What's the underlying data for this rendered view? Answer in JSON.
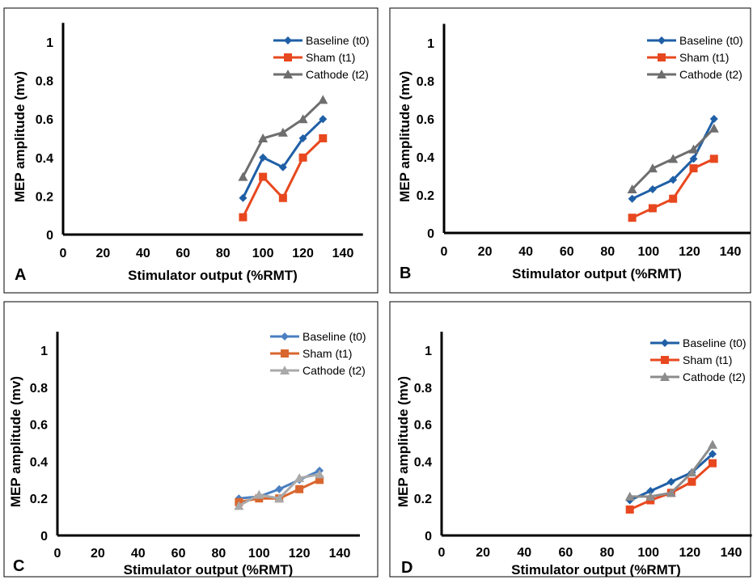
{
  "chart_data": [
    {
      "panel_label": "A",
      "type": "line",
      "xlabel": "Stimulator output (%RMT)",
      "ylabel": "MEP amplitude (mv)",
      "xlim": [
        0,
        150
      ],
      "ylim": [
        0,
        1.1
      ],
      "x_ticks": [
        "0",
        "20",
        "40",
        "60",
        "80",
        "100",
        "120",
        "140"
      ],
      "y_ticks": [
        "0",
        "0.2",
        "0.4",
        "0.6",
        "0.8",
        "1"
      ],
      "legend_position": "top-right",
      "series": [
        {
          "name": "Baseline (t0)",
          "marker": "diamond",
          "color": "#1f5fa6",
          "x": [
            90,
            100,
            110,
            120,
            130
          ],
          "values": [
            0.19,
            0.4,
            0.35,
            0.5,
            0.6
          ]
        },
        {
          "name": "Sham (t1)",
          "marker": "square",
          "color": "#e8481f",
          "x": [
            90,
            100,
            110,
            120,
            130
          ],
          "values": [
            0.09,
            0.3,
            0.19,
            0.4,
            0.5
          ]
        },
        {
          "name": "Cathode (t2)",
          "marker": "triangle",
          "color": "#6e6e6e",
          "x": [
            90,
            100,
            110,
            120,
            130
          ],
          "values": [
            0.3,
            0.5,
            0.53,
            0.6,
            0.7
          ]
        }
      ]
    },
    {
      "panel_label": "B",
      "type": "line",
      "xlabel": "Stimulator output (%RMT)",
      "ylabel": "MEP amplitude (mv)",
      "xlim": [
        0,
        150
      ],
      "ylim": [
        0,
        1.1
      ],
      "x_ticks": [
        "0",
        "20",
        "40",
        "60",
        "80",
        "100",
        "120",
        "140"
      ],
      "y_ticks": [
        "0",
        "0.2",
        "0.4",
        "0.6",
        "0.8",
        "1"
      ],
      "legend_position": "top-right",
      "series": [
        {
          "name": "Baseline (t0)",
          "marker": "diamond",
          "color": "#1f5fa6",
          "x": [
            92,
            102,
            112,
            122,
            132
          ],
          "values": [
            0.18,
            0.23,
            0.28,
            0.39,
            0.6
          ]
        },
        {
          "name": "Sham (t1)",
          "marker": "square",
          "color": "#e8481f",
          "x": [
            92,
            102,
            112,
            122,
            132
          ],
          "values": [
            0.08,
            0.13,
            0.18,
            0.34,
            0.39
          ]
        },
        {
          "name": "Cathode (t2)",
          "marker": "triangle",
          "color": "#6e6e6e",
          "x": [
            92,
            102,
            112,
            122,
            132
          ],
          "values": [
            0.23,
            0.34,
            0.39,
            0.44,
            0.55
          ]
        }
      ]
    },
    {
      "panel_label": "C",
      "type": "line",
      "xlabel": "Stimulator output (%RMT)",
      "ylabel": "MEP amplitude (mv)",
      "xlim": [
        0,
        150
      ],
      "ylim": [
        0,
        1.1
      ],
      "x_ticks": [
        "0",
        "20",
        "40",
        "60",
        "80",
        "100",
        "120",
        "140"
      ],
      "y_ticks": [
        "0",
        "0.2",
        "0.4",
        "0.6",
        "0.8",
        "1"
      ],
      "legend_position": "top-right",
      "series": [
        {
          "name": "Baseline (t0)",
          "marker": "diamond",
          "color": "#4a7fc1",
          "x": [
            90,
            100,
            110,
            120,
            130
          ],
          "values": [
            0.2,
            0.21,
            0.25,
            0.3,
            0.35
          ]
        },
        {
          "name": "Sham (t1)",
          "marker": "square",
          "color": "#d9662e",
          "x": [
            90,
            100,
            110,
            120,
            130
          ],
          "values": [
            0.18,
            0.2,
            0.2,
            0.25,
            0.3
          ]
        },
        {
          "name": "Cathode (t2)",
          "marker": "triangle",
          "color": "#a9a9a9",
          "x": [
            90,
            100,
            110,
            120,
            130
          ],
          "values": [
            0.16,
            0.22,
            0.2,
            0.31,
            0.33
          ]
        }
      ]
    },
    {
      "panel_label": "D",
      "type": "line",
      "xlabel": "Stimulator output (%RMT)",
      "ylabel": "MEP amplitude (mv)",
      "xlim": [
        0,
        150
      ],
      "ylim": [
        0,
        1.1
      ],
      "x_ticks": [
        "0",
        "20",
        "40",
        "60",
        "80",
        "100",
        "120",
        "140"
      ],
      "y_ticks": [
        "0",
        "0.2",
        "0.4",
        "0.6",
        "0.8",
        "1"
      ],
      "legend_position": "top-right",
      "series": [
        {
          "name": "Baseline (t0)",
          "marker": "diamond",
          "color": "#1f5fa6",
          "x": [
            91,
            101,
            111,
            121,
            131
          ],
          "values": [
            0.19,
            0.24,
            0.29,
            0.34,
            0.44
          ]
        },
        {
          "name": "Sham (t1)",
          "marker": "square",
          "color": "#e8481f",
          "x": [
            91,
            101,
            111,
            121,
            131
          ],
          "values": [
            0.14,
            0.19,
            0.23,
            0.29,
            0.39
          ]
        },
        {
          "name": "Cathode (t2)",
          "marker": "triangle",
          "color": "#8c8c8c",
          "x": [
            91,
            101,
            111,
            121,
            131
          ],
          "values": [
            0.21,
            0.21,
            0.23,
            0.34,
            0.49
          ]
        }
      ]
    }
  ]
}
